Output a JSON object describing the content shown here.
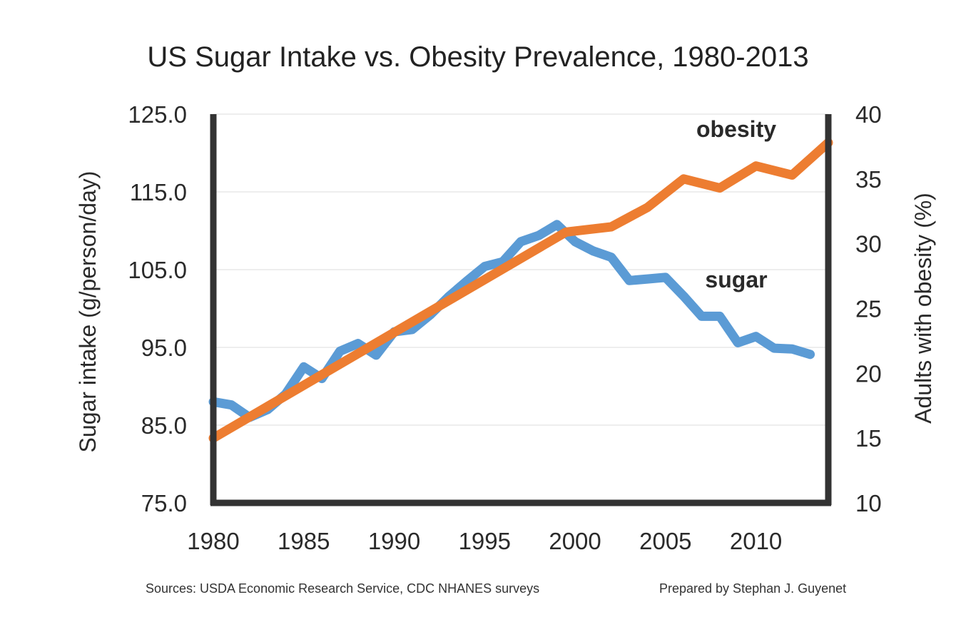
{
  "chart_data": {
    "type": "line",
    "title": "US Sugar Intake vs. Obesity Prevalence, 1980-2013",
    "ylabel": "Sugar intake (g/person/day)",
    "y2label": "Adults with obesity (%)",
    "x_ticks": [
      "1980",
      "1985",
      "1990",
      "1995",
      "2000",
      "2005",
      "2010"
    ],
    "y_ticks": [
      "125.0",
      "115.0",
      "105.0",
      "95.0",
      "85.0",
      "75.0"
    ],
    "y2_ticks": [
      "40",
      "35",
      "30",
      "25",
      "20",
      "15",
      "10"
    ],
    "xlim": [
      1980,
      2014
    ],
    "ylim": [
      75,
      125
    ],
    "y2lim": [
      10,
      40
    ],
    "grid": true,
    "series": [
      {
        "name": "sugar",
        "axis": "left",
        "color": "#5b9bd5",
        "x": [
          1980,
          1981,
          1982,
          1983,
          1984,
          1985,
          1986,
          1987,
          1988,
          1989,
          1990,
          1991,
          1992,
          1993,
          1994,
          1995,
          1996,
          1997,
          1998,
          1999,
          2000,
          2001,
          2002,
          2003,
          2004,
          2005,
          2006,
          2007,
          2008,
          2009,
          2010,
          2011,
          2012,
          2013
        ],
        "values": [
          88.0,
          87.6,
          86.0,
          87.0,
          89.0,
          92.5,
          91.0,
          94.5,
          95.5,
          94.0,
          97.0,
          97.3,
          99.2,
          101.5,
          103.5,
          105.4,
          106.0,
          108.6,
          109.4,
          110.8,
          108.6,
          107.4,
          106.6,
          103.6,
          103.8,
          104.0,
          101.6,
          99.0,
          99.0,
          95.6,
          96.4,
          94.9,
          94.8,
          94.1
        ]
      },
      {
        "name": "obesity",
        "axis": "right",
        "color": "#ed7d31",
        "x": [
          1980,
          1999.5,
          2002,
          2004,
          2006,
          2008,
          2010,
          2012,
          2014
        ],
        "values": [
          15.0,
          30.9,
          31.3,
          32.8,
          35.0,
          34.3,
          36.0,
          35.3,
          37.8
        ]
      }
    ]
  },
  "sources": {
    "left": "Sources: USDA Economic Research Service, CDC NHANES surveys",
    "right": "Prepared by Stephan J. Guyenet"
  }
}
